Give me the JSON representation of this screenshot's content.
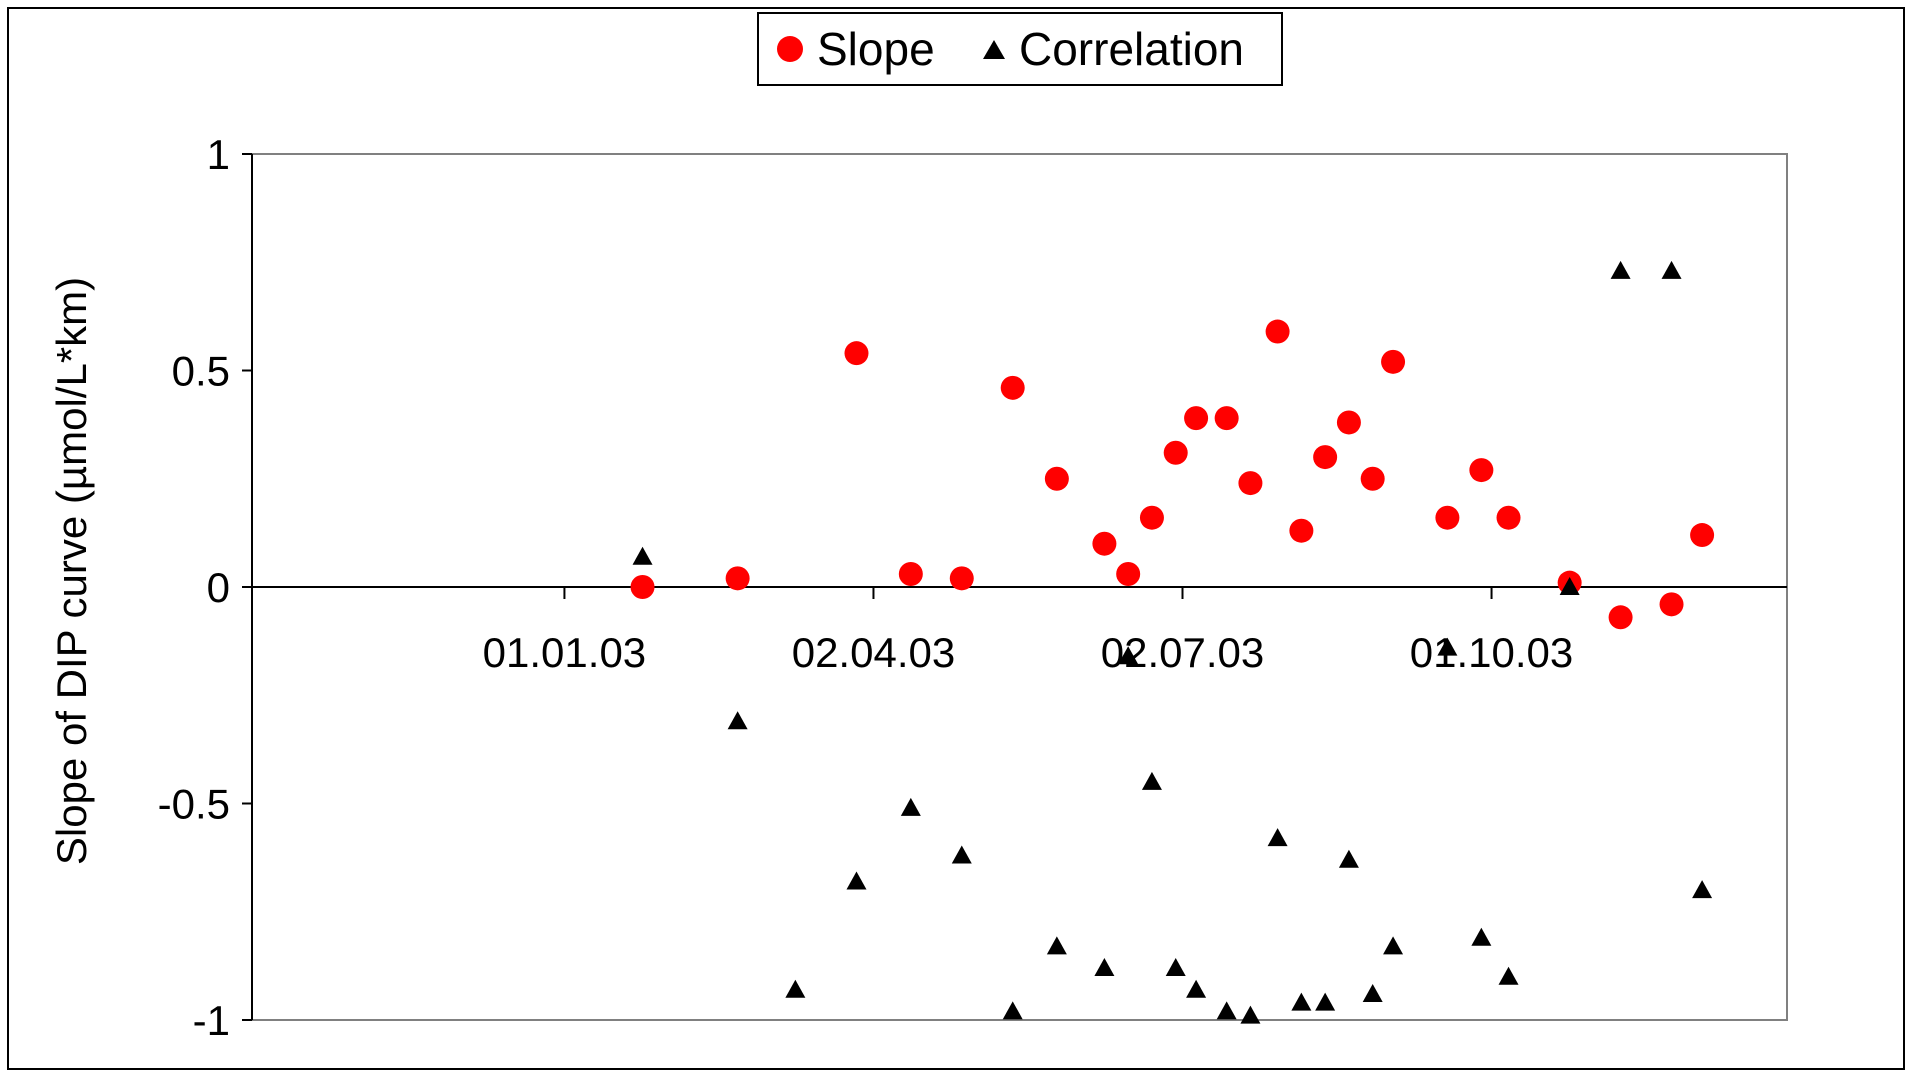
{
  "chart_data": {
    "type": "scatter",
    "title": "",
    "xlabel": "",
    "ylabel": "Slope of DIP curve (µmol/L*km)",
    "ylim": [
      -1,
      1
    ],
    "yticks": [
      "1",
      "0.5",
      "0",
      "-0.5",
      "-1"
    ],
    "xticks": [
      "01.01.03",
      "02.04.03",
      "02.07.03",
      "01.10.03"
    ],
    "xlim": [
      "01.10.02",
      "27.12.03"
    ],
    "grid": false,
    "legend_position": "top-center",
    "series": [
      {
        "name": "Slope",
        "marker": "circle",
        "color": "#ff0000",
        "x": [
          "24.01.03",
          "21.02.03",
          "28.03.03",
          "13.04.03",
          "28.04.03",
          "13.05.03",
          "26.05.03",
          "09.06.03",
          "16.06.03",
          "23.06.03",
          "30.06.03",
          "06.07.03",
          "15.07.03",
          "22.07.03",
          "30.07.03",
          "06.08.03",
          "13.08.03",
          "20.08.03",
          "27.08.03",
          "02.09.03",
          "18.09.03",
          "28.09.03",
          "06.10.03",
          "24.10.03",
          "08.11.03",
          "23.11.03",
          "02.12.03"
        ],
        "y": [
          0.0,
          0.02,
          0.54,
          0.03,
          0.02,
          0.46,
          0.25,
          0.1,
          0.03,
          0.16,
          0.31,
          0.39,
          0.39,
          0.24,
          0.59,
          0.13,
          0.3,
          0.38,
          0.25,
          0.52,
          0.16,
          0.27,
          0.16,
          0.01,
          -0.07,
          -0.04,
          0.12
        ]
      },
      {
        "name": "Correlation",
        "marker": "triangle",
        "color": "#000000",
        "x": [
          "24.01.03",
          "21.02.03",
          "10.03.03",
          "28.03.03",
          "13.04.03",
          "28.04.03",
          "13.05.03",
          "26.05.03",
          "09.06.03",
          "16.06.03",
          "23.06.03",
          "30.06.03",
          "06.07.03",
          "15.07.03",
          "22.07.03",
          "30.07.03",
          "06.08.03",
          "13.08.03",
          "20.08.03",
          "27.08.03",
          "02.09.03",
          "18.09.03",
          "28.09.03",
          "06.10.03",
          "24.10.03",
          "08.11.03",
          "23.11.03",
          "02.12.03"
        ],
        "y": [
          0.07,
          -0.31,
          -0.93,
          -0.68,
          -0.51,
          -0.62,
          -0.98,
          -0.83,
          -0.88,
          -0.16,
          -0.45,
          -0.88,
          -0.93,
          -0.98,
          -0.99,
          -0.58,
          -0.96,
          -0.96,
          -0.63,
          -0.94,
          -0.83,
          -0.14,
          -0.81,
          -0.9,
          0.0,
          0.73,
          0.73,
          -0.7
        ]
      }
    ]
  }
}
